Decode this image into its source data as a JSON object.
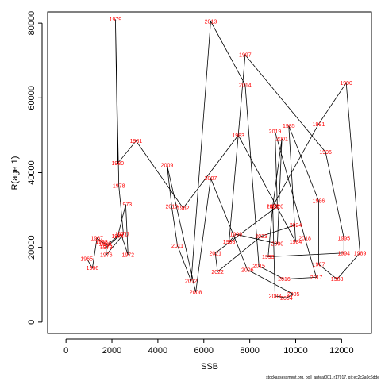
{
  "chart_data": {
    "type": "line",
    "title": "",
    "xlabel": "SSB",
    "ylabel": "R(age 1)",
    "xlim": [
      -800,
      13300
    ],
    "ylim": [
      -3000,
      83000
    ],
    "xticks": [
      0,
      2000,
      4000,
      6000,
      8000,
      10000,
      12000
    ],
    "yticks": [
      0,
      20000,
      40000,
      60000,
      80000
    ],
    "grid": false,
    "line_color": "#000000",
    "label_color": "#ff0000",
    "points": [
      {
        "year": "1965",
        "x": 900,
        "y": 17000
      },
      {
        "year": "1966",
        "x": 1150,
        "y": 14500
      },
      {
        "year": "1967",
        "x": 1350,
        "y": 22500
      },
      {
        "year": "1968",
        "x": 1550,
        "y": 21500
      },
      {
        "year": "1969",
        "x": 1700,
        "y": 21000
      },
      {
        "year": "1970",
        "x": 1750,
        "y": 20000
      },
      {
        "year": "1971",
        "x": 2400,
        "y": 23500
      },
      {
        "year": "1972",
        "x": 2700,
        "y": 18000
      },
      {
        "year": "1973",
        "x": 2600,
        "y": 31500
      },
      {
        "year": "1974",
        "x": 2250,
        "y": 23000
      },
      {
        "year": "1975",
        "x": 1750,
        "y": 20500
      },
      {
        "year": "1976",
        "x": 1750,
        "y": 18000
      },
      {
        "year": "1977",
        "x": 2500,
        "y": 23500
      },
      {
        "year": "1978",
        "x": 2300,
        "y": 36500
      },
      {
        "year": "1979",
        "x": 2150,
        "y": 81000
      },
      {
        "year": "1980",
        "x": 2250,
        "y": 42500
      },
      {
        "year": "1981",
        "x": 3050,
        "y": 48500
      },
      {
        "year": "1982",
        "x": 5100,
        "y": 30500
      },
      {
        "year": "1983",
        "x": 7500,
        "y": 50000
      },
      {
        "year": "1984",
        "x": 10000,
        "y": 21500
      },
      {
        "year": "1985",
        "x": 9700,
        "y": 52500
      },
      {
        "year": "1986",
        "x": 11000,
        "y": 32500
      },
      {
        "year": "1987",
        "x": 11000,
        "y": 15500
      },
      {
        "year": "1988",
        "x": 11800,
        "y": 11500
      },
      {
        "year": "1989",
        "x": 12800,
        "y": 18500
      },
      {
        "year": "1990",
        "x": 12200,
        "y": 64000
      },
      {
        "year": "1991",
        "x": 11000,
        "y": 53000
      },
      {
        "year": "1992",
        "x": 9000,
        "y": 31000
      },
      {
        "year": "1993",
        "x": 8800,
        "y": 17500
      },
      {
        "year": "1994",
        "x": 12100,
        "y": 18500
      },
      {
        "year": "1995",
        "x": 12100,
        "y": 22500
      },
      {
        "year": "1996",
        "x": 11300,
        "y": 45500
      },
      {
        "year": "1997",
        "x": 7800,
        "y": 71500
      },
      {
        "year": "1998",
        "x": 7100,
        "y": 21500
      },
      {
        "year": "1999",
        "x": 7400,
        "y": 23500
      },
      {
        "year": "2000",
        "x": 9200,
        "y": 21000
      },
      {
        "year": "2001",
        "x": 9400,
        "y": 49000
      },
      {
        "year": "2002",
        "x": 9000,
        "y": 31000
      },
      {
        "year": "2003",
        "x": 9100,
        "y": 7000
      },
      {
        "year": "2004",
        "x": 9600,
        "y": 6500
      },
      {
        "year": "2005",
        "x": 9900,
        "y": 7500
      },
      {
        "year": "2006",
        "x": 7900,
        "y": 14000
      },
      {
        "year": "2007",
        "x": 6300,
        "y": 38500
      },
      {
        "year": "2008",
        "x": 5650,
        "y": 8000
      },
      {
        "year": "2009",
        "x": 4400,
        "y": 42000
      },
      {
        "year": "2010",
        "x": 4600,
        "y": 31000
      },
      {
        "year": "2011",
        "x": 4850,
        "y": 20500
      },
      {
        "year": "2012",
        "x": 5450,
        "y": 11000
      },
      {
        "year": "2013",
        "x": 6300,
        "y": 80500
      },
      {
        "year": "2014",
        "x": 7800,
        "y": 63500
      },
      {
        "year": "2015",
        "x": 8400,
        "y": 15000
      },
      {
        "year": "2016",
        "x": 9500,
        "y": 11500
      },
      {
        "year": "2017",
        "x": 10900,
        "y": 12000
      },
      {
        "year": "2018",
        "x": 10400,
        "y": 22500
      },
      {
        "year": "2019",
        "x": 9100,
        "y": 51000
      },
      {
        "year": "2020",
        "x": 9200,
        "y": 31000
      },
      {
        "year": "2021",
        "x": 6500,
        "y": 18500
      },
      {
        "year": "2022",
        "x": 6600,
        "y": 13500
      },
      {
        "year": "2023",
        "x": 8500,
        "y": 23000
      },
      {
        "year": "2024",
        "x": 10000,
        "y": 26000
      }
    ]
  },
  "footer": {
    "credit": "stockassessment.org, poll_anteat001, r17917, git:ec2c2a0c6dde"
  }
}
